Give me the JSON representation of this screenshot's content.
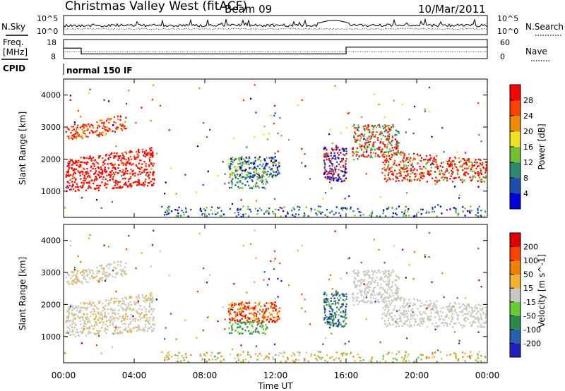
{
  "header": {
    "station": "Christmas Valley West (fitACF)",
    "beam": "Beam 09",
    "date": "10/Mar/2011"
  },
  "strip_labels": {
    "nsky": "N.Sky",
    "nsearch": "N.Search",
    "freq": "Freq.",
    "freq_unit": "[MHz]",
    "nave": "Nave",
    "cpid": "CPID",
    "cpid_value": "normal 150 IF"
  },
  "chart_data": [
    {
      "type": "line",
      "panel": "noise",
      "y_ticks_left": [
        "10^5",
        "10^0"
      ],
      "y_ticks_right": [
        "10^5",
        "10^0"
      ],
      "series": [
        {
          "name": "N.Sky",
          "style": "solid"
        },
        {
          "name": "N.Search",
          "style": "dotted"
        }
      ]
    },
    {
      "type": "line",
      "panel": "frequency",
      "y_ticks_left": [
        "18",
        "8"
      ],
      "y_ticks_right": [
        "60",
        "0"
      ],
      "ylim_left": [
        8,
        18
      ],
      "ylim_right": [
        0,
        60
      ],
      "x": [
        0,
        1,
        1,
        16,
        16,
        24
      ],
      "series": [
        {
          "name": "Freq.",
          "style": "solid",
          "values": [
            13.5,
            13.5,
            10.5,
            10.5,
            14,
            14
          ]
        },
        {
          "name": "Nave",
          "style": "dotted",
          "values": [
            22,
            22,
            22,
            22,
            22,
            22
          ]
        }
      ]
    },
    {
      "type": "heatmap",
      "panel": "power",
      "ylabel": "Slant Range [km]",
      "y_ticks": [
        1000,
        2000,
        3000,
        4000
      ],
      "ylim": [
        180,
        4500
      ],
      "colorbar_label": "Power [dB]",
      "colorbar_ticks": [
        28,
        24,
        20,
        16,
        12,
        8,
        4
      ],
      "colorbar_colors": [
        "#0000e0",
        "#1e4fb0",
        "#2a8a70",
        "#70c030",
        "#f0e020",
        "#f08a00",
        "#ff4000",
        "#ff0000"
      ]
    },
    {
      "type": "heatmap",
      "panel": "velocity",
      "ylabel": "Slant Range [km]",
      "y_ticks": [
        1000,
        2000,
        3000,
        4000
      ],
      "ylim": [
        180,
        4500
      ],
      "colorbar_label": "Velocity [m s^-1]",
      "colorbar_ticks": [
        200,
        100,
        50,
        15,
        -15,
        -50,
        -100,
        -200
      ],
      "colorbar_colors": [
        "#2020c0",
        "#2860b0",
        "#2a8a4a",
        "#66cc33",
        "#c8c8c0",
        "#f0b030",
        "#f08000",
        "#ff4000",
        "#e00000"
      ]
    }
  ],
  "x_axis": {
    "label": "Time UT",
    "ticks": [
      "00:00",
      "04:00",
      "08:00",
      "12:00",
      "16:00",
      "20:00",
      "00:00"
    ]
  }
}
